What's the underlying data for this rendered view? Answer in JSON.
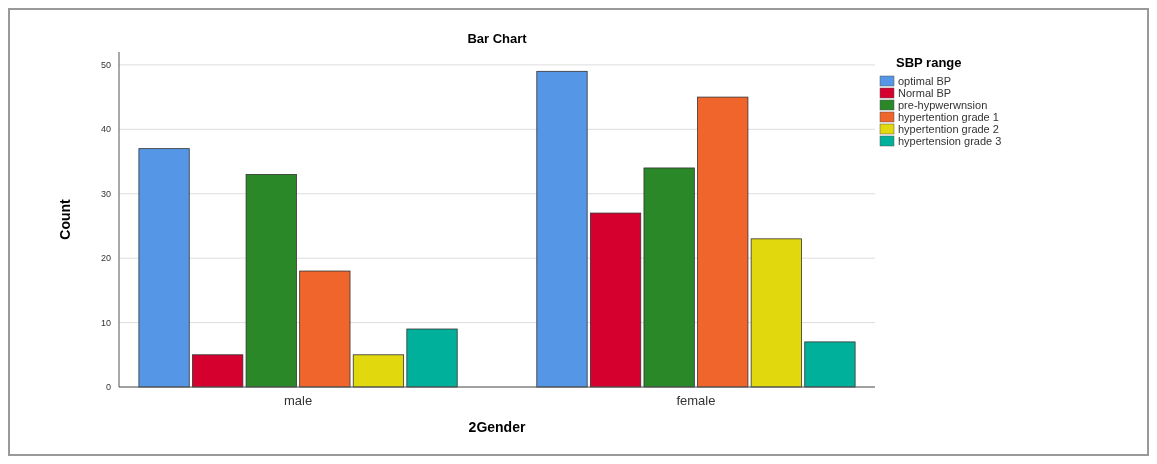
{
  "chart_data": {
    "type": "bar",
    "title": "Bar Chart",
    "xlabel": "2Gender",
    "ylabel": "Count",
    "legend_title": "SBP range",
    "categories": [
      "male",
      "female"
    ],
    "series": [
      {
        "name": "optimal BP",
        "color": "#5596e6",
        "values": [
          37,
          49
        ]
      },
      {
        "name": "Normal BP",
        "color": "#d5002d",
        "values": [
          5,
          27
        ]
      },
      {
        "name": "pre-hypwerwnsion",
        "color": "#2a8828",
        "values": [
          33,
          34
        ]
      },
      {
        "name": "hypertention grade 1",
        "color": "#f0652b",
        "values": [
          18,
          45
        ]
      },
      {
        "name": "hypertention grade 2",
        "color": "#e1d80e",
        "values": [
          5,
          23
        ]
      },
      {
        "name": "hypertension grade 3",
        "color": "#00b09a",
        "values": [
          9,
          7
        ]
      }
    ],
    "ylim": [
      0,
      52
    ],
    "yticks": [
      0,
      10,
      20,
      30,
      40,
      50
    ],
    "grid": "y",
    "legend": "top right"
  }
}
